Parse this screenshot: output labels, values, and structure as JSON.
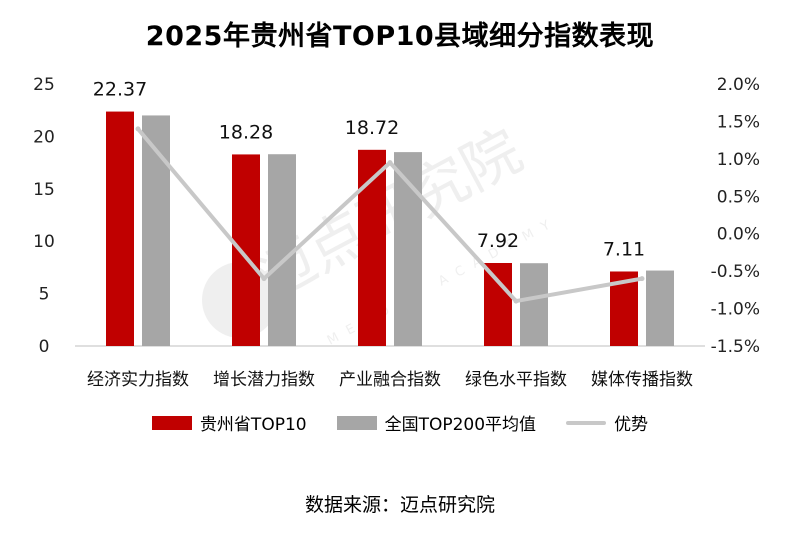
{
  "chart_data": {
    "type": "bar",
    "title": "2025年贵州省TOP10县域细分指数表现",
    "categories": [
      "经济实力指数",
      "增长潜力指数",
      "产业融合指数",
      "绿色水平指数",
      "媒体传播指数"
    ],
    "series": [
      {
        "name": "贵州省TOP10",
        "type": "bar",
        "axis": "left",
        "color": "#c00000",
        "values": [
          22.37,
          18.28,
          18.72,
          7.92,
          7.11
        ],
        "labels": [
          "22.37",
          "18.28",
          "18.72",
          "7.92",
          "7.11"
        ]
      },
      {
        "name": "全国TOP200平均值",
        "type": "bar",
        "axis": "left",
        "color": "#a6a6a6",
        "values": [
          22.0,
          18.3,
          18.5,
          7.9,
          7.2
        ]
      },
      {
        "name": "优势",
        "type": "line",
        "axis": "right",
        "color": "#c8c8c8",
        "values": [
          1.4,
          -0.6,
          0.95,
          -0.9,
          -0.6
        ]
      }
    ],
    "y_left": {
      "min": 0,
      "max": 25,
      "ticks": [
        "0",
        "5",
        "10",
        "15",
        "20",
        "25"
      ]
    },
    "y_right": {
      "min": -1.5,
      "max": 2.0,
      "ticks": [
        "-1.5%",
        "-1.0%",
        "-0.5%",
        "0.0%",
        "0.5%",
        "1.0%",
        "1.5%",
        "2.0%"
      ]
    },
    "legend_position": "bottom"
  },
  "watermark": {
    "text": "迈点研究院",
    "subtext": "MEADIN ACADEMY"
  },
  "source": "数据来源：迈点研究院"
}
